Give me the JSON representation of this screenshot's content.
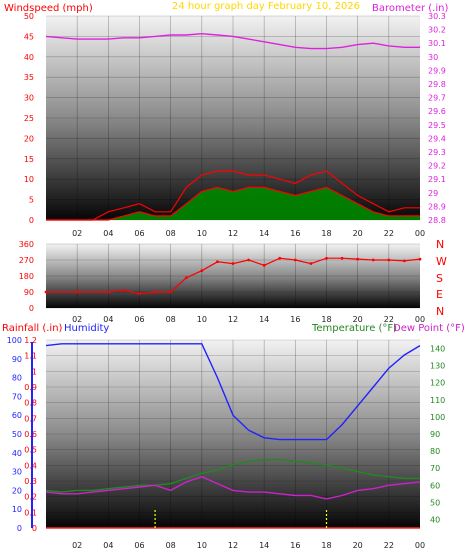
{
  "title": "24 hour graph day  February 10, 2026",
  "colors": {
    "wind": "#ff0000",
    "gust": "#ff0000",
    "avg": "#0000ff",
    "green": "#008800",
    "baro": "#dd22dd",
    "dir": "#ff0000",
    "hum": "#2222ff",
    "temp": "#228822",
    "dew": "#cc22cc",
    "rain": "#ff2222",
    "title": "#ffd700",
    "gridLabel": "#ff0000"
  },
  "x_ticks": [
    "02",
    "04",
    "06",
    "08",
    "10",
    "12",
    "14",
    "16",
    "18",
    "20",
    "22",
    "00"
  ],
  "panel1": {
    "left_label": "Windspeed (mph)",
    "right_label": "Barometer (.in)",
    "left_ticks": [
      "0",
      "5",
      "10",
      "15",
      "20",
      "25",
      "30",
      "35",
      "40",
      "45",
      "50"
    ],
    "right_ticks": [
      "28.8",
      "28.9",
      "29",
      "29.1",
      "29.2",
      "29.3",
      "29.4",
      "29.5",
      "29.6",
      "29.7",
      "29.8",
      "29.9",
      "30",
      "30.1",
      "30.2",
      "30.3"
    ]
  },
  "panel2": {
    "left_ticks": [
      "0",
      "90",
      "180",
      "270",
      "360"
    ],
    "compass": [
      "N",
      "W",
      "S",
      "E",
      "N"
    ]
  },
  "panel3": {
    "left_label": "Rainfall (.in)",
    "mid_label": "Humidity",
    "right_label": "Temperature (°F)",
    "right_label2": "Dew Point (°F)",
    "rain_ticks": [
      "0",
      "0.1",
      "0.2",
      "0.3",
      "0.4",
      "0.5",
      "0.6",
      "0.7",
      "0.8",
      "0.9",
      "1",
      "1.1",
      "1.2"
    ],
    "hum_ticks": [
      "0",
      "10",
      "20",
      "30",
      "40",
      "50",
      "60",
      "70",
      "80",
      "90",
      "100"
    ],
    "temp_ticks": [
      "40",
      "50",
      "60",
      "70",
      "80",
      "90",
      "100",
      "110",
      "120",
      "130",
      "140"
    ]
  },
  "chart_data": [
    {
      "type": "line",
      "title": "24 hour graph day  February 10, 2026",
      "xlabel": "",
      "ylabel": "Windspeed (mph)",
      "ylabel_right": "Barometer (.in)",
      "x": [
        0,
        1,
        2,
        3,
        4,
        5,
        6,
        7,
        8,
        9,
        10,
        11,
        12,
        13,
        14,
        15,
        16,
        17,
        18,
        19,
        20,
        21,
        22,
        23,
        24
      ],
      "ylim": [
        0,
        50
      ],
      "ylim_right": [
        28.8,
        30.3
      ],
      "series": [
        {
          "name": "Barometer (.in)",
          "axis": "right",
          "values": [
            30.15,
            30.14,
            30.13,
            30.13,
            30.13,
            30.14,
            30.14,
            30.15,
            30.16,
            30.16,
            30.17,
            30.16,
            30.15,
            30.13,
            30.11,
            30.09,
            30.07,
            30.06,
            30.06,
            30.07,
            30.09,
            30.1,
            30.08,
            30.07,
            30.07
          ]
        },
        {
          "name": "Windspeed (mph)",
          "values": [
            0,
            0,
            0,
            0,
            0,
            1,
            2,
            1,
            1,
            4,
            7,
            8,
            7,
            8,
            8,
            7,
            6,
            7,
            8,
            6,
            4,
            2,
            1,
            1,
            1
          ]
        },
        {
          "name": "Gust (mph)",
          "values": [
            0,
            0,
            0,
            0,
            2,
            3,
            4,
            2,
            2,
            8,
            11,
            12,
            12,
            11,
            11,
            10,
            9,
            11,
            12,
            9,
            6,
            4,
            2,
            3,
            3
          ]
        }
      ]
    },
    {
      "type": "scatter",
      "ylabel": "",
      "ylim": [
        0,
        360
      ],
      "x": [
        0,
        2,
        4,
        5,
        6,
        7,
        8,
        9,
        10,
        11,
        12,
        13,
        14,
        15,
        16,
        17,
        18,
        19,
        20,
        21,
        22,
        23,
        24
      ],
      "series": [
        {
          "name": "",
          "values": [
            90,
            90,
            90,
            100,
            80,
            90,
            90,
            170,
            210,
            260,
            250,
            270,
            240,
            280,
            270,
            250,
            280,
            280,
            275,
            270,
            270,
            265,
            275
          ]
        }
      ]
    },
    {
      "type": "line",
      "ylabel": "Rainfall (.in)",
      "ylabel_mid": "Humidity",
      "ylabel_right": "Temperature (°F)",
      "x": [
        0,
        1,
        2,
        3,
        4,
        5,
        6,
        7,
        8,
        9,
        10,
        11,
        12,
        13,
        14,
        15,
        16,
        17,
        18,
        19,
        20,
        21,
        22,
        23,
        24
      ],
      "ylim": [
        0,
        1.2
      ],
      "hum_lim": [
        0,
        100
      ],
      "temp_lim": [
        35,
        145
      ],
      "series": [
        {
          "name": "Humidity",
          "axis": "hum",
          "values": [
            97,
            98,
            98,
            98,
            98,
            98,
            98,
            98,
            98,
            98,
            98,
            80,
            60,
            52,
            48,
            47,
            47,
            47,
            47,
            55,
            65,
            75,
            85,
            92,
            97
          ]
        },
        {
          "name": "Temperature (°F)",
          "axis": "temp",
          "values": [
            57,
            56,
            57,
            57,
            58,
            59,
            60,
            60,
            61,
            64,
            67,
            69,
            72,
            74,
            75,
            75,
            74,
            73,
            72,
            70,
            68,
            66,
            65,
            64,
            64
          ]
        },
        {
          "name": "Dew Point (°F)",
          "axis": "temp",
          "values": [
            56,
            55,
            55,
            56,
            57,
            58,
            59,
            60,
            57,
            62,
            65,
            61,
            57,
            56,
            56,
            55,
            54,
            54,
            52,
            54,
            57,
            58,
            60,
            61,
            62
          ]
        },
        {
          "name": "Rainfall (.in)",
          "values": [
            0,
            0,
            0,
            0,
            0,
            0,
            0,
            0,
            0,
            0,
            0,
            0,
            0,
            0,
            0,
            0,
            0,
            0,
            0,
            0,
            0,
            0,
            0,
            0,
            0
          ]
        }
      ]
    }
  ]
}
